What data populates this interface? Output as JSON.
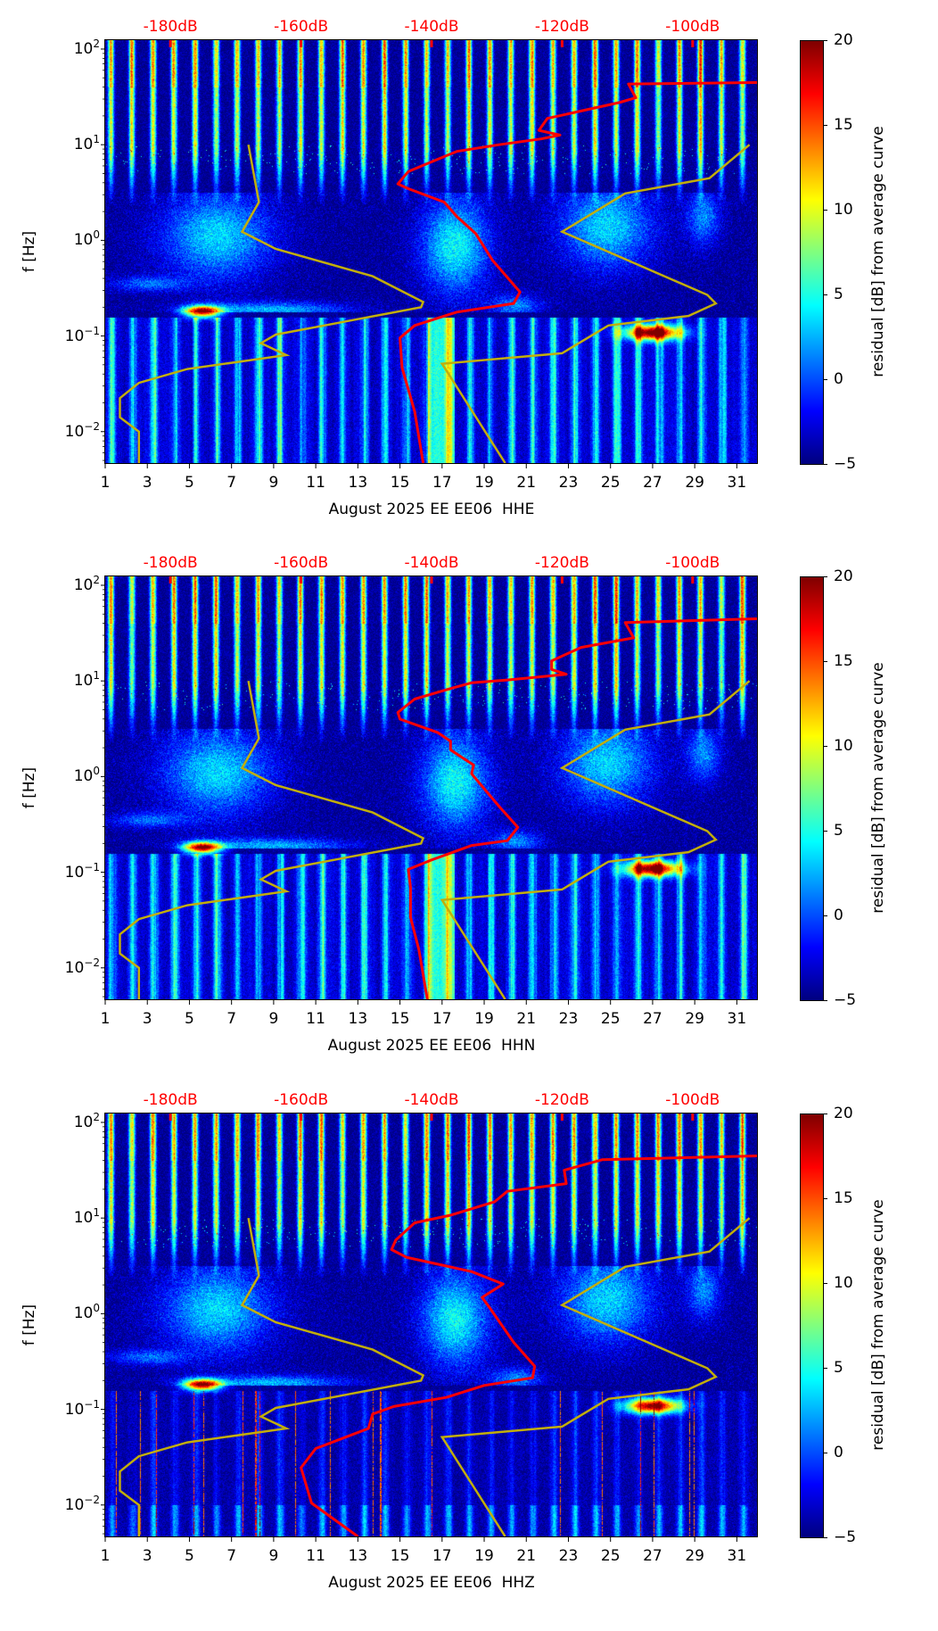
{
  "colors": {
    "red_curve": "#ff0000",
    "yellow_curve": "#c2ae0a",
    "db_labels": "#ff0000"
  },
  "chart_data": [
    {
      "type": "heatmap",
      "xlabel": "August 2025 EE EE06  HHE",
      "ylabel": "f [Hz]",
      "colorbar_label": "residual [dB] from average curve",
      "colorbar_range": [
        -5,
        20
      ],
      "colorbar_ticks": [
        "20",
        "15",
        "10",
        "5",
        "0",
        "−5"
      ],
      "xlim": [
        1,
        32
      ],
      "x_ticks": [
        "1",
        "3",
        "5",
        "7",
        "9",
        "11",
        "13",
        "15",
        "17",
        "19",
        "21",
        "23",
        "25",
        "27",
        "29",
        "31"
      ],
      "ylim_hz": [
        0.0046,
        124
      ],
      "y_scale": "log",
      "y_ticks": [
        {
          "base": "10",
          "exp": "2"
        },
        {
          "base": "10",
          "exp": "1"
        },
        {
          "base": "10",
          "exp": "0"
        },
        {
          "base": "10",
          "exp": "−1"
        },
        {
          "base": "10",
          "exp": "−2"
        }
      ],
      "top_axis_labels": [
        {
          "label": "-180dB",
          "day": 4.1
        },
        {
          "label": "-160dB",
          "day": 10.3
        },
        {
          "label": "-140dB",
          "day": 16.5
        },
        {
          "label": "-120dB",
          "day": 22.7
        },
        {
          "label": "-100dB",
          "day": 28.9
        }
      ],
      "red_curve_day_log10f": [
        [
          32,
          1.65
        ],
        [
          25.85,
          1.635
        ],
        [
          26.2,
          1.49
        ],
        [
          25.4,
          1.44
        ],
        [
          23.7,
          1.357
        ],
        [
          22.0,
          1.275
        ],
        [
          21.6,
          1.15
        ],
        [
          22.6,
          1.1
        ],
        [
          21.7,
          1.06
        ],
        [
          19.7,
          1.0
        ],
        [
          17.7,
          0.93
        ],
        [
          16.6,
          0.83
        ],
        [
          15.4,
          0.72
        ],
        [
          14.9,
          0.59
        ],
        [
          15.4,
          0.54
        ],
        [
          17.1,
          0.4
        ],
        [
          17.7,
          0.25
        ],
        [
          18.6,
          0.07
        ],
        [
          19.4,
          -0.21
        ],
        [
          20.7,
          -0.54
        ],
        [
          20.4,
          -0.66
        ],
        [
          17.7,
          -0.75
        ],
        [
          15.7,
          -0.89
        ],
        [
          15.0,
          -1.02
        ],
        [
          15.1,
          -1.33
        ],
        [
          15.7,
          -1.79
        ],
        [
          16.1,
          -2.33
        ]
      ],
      "yellow_curve_low_day_log10f": [
        [
          7.8,
          1.0
        ],
        [
          8.3,
          0.4
        ],
        [
          7.5,
          0.09
        ],
        [
          9.1,
          -0.09
        ],
        [
          13.7,
          -0.375
        ],
        [
          16.1,
          -0.645
        ],
        [
          16.0,
          -0.7
        ],
        [
          9.1,
          -0.985
        ],
        [
          8.4,
          -1.075
        ],
        [
          9.6,
          -1.2
        ],
        [
          4.9,
          -1.345
        ],
        [
          2.6,
          -1.49
        ],
        [
          1.7,
          -1.65
        ],
        [
          1.7,
          -1.85
        ],
        [
          2.6,
          -2.0
        ],
        [
          2.6,
          -2.33
        ]
      ],
      "yellow_curve_high_day_log10f": [
        [
          20.0,
          -2.33
        ],
        [
          17.0,
          -1.29
        ],
        [
          22.7,
          -1.18
        ],
        [
          24.9,
          -0.89
        ],
        [
          28.7,
          -0.79
        ],
        [
          30.0,
          -0.66
        ],
        [
          29.6,
          -0.57
        ],
        [
          22.7,
          0.09
        ],
        [
          25.7,
          0.49
        ],
        [
          29.7,
          0.65
        ],
        [
          31.6,
          1.0
        ]
      ]
    },
    {
      "type": "heatmap",
      "xlabel": "August 2025 EE EE06  HHN",
      "ylabel": "f [Hz]",
      "colorbar_label": "residual [dB] from average curve",
      "colorbar_range": [
        -5,
        20
      ],
      "colorbar_ticks": [
        "20",
        "15",
        "10",
        "5",
        "0",
        "−5"
      ],
      "xlim": [
        1,
        32
      ],
      "x_ticks": [
        "1",
        "3",
        "5",
        "7",
        "9",
        "11",
        "13",
        "15",
        "17",
        "19",
        "21",
        "23",
        "25",
        "27",
        "29",
        "31"
      ],
      "ylim_hz": [
        0.0046,
        124
      ],
      "y_scale": "log",
      "y_ticks": [
        {
          "base": "10",
          "exp": "2"
        },
        {
          "base": "10",
          "exp": "1"
        },
        {
          "base": "10",
          "exp": "0"
        },
        {
          "base": "10",
          "exp": "−1"
        },
        {
          "base": "10",
          "exp": "−2"
        }
      ],
      "top_axis_labels": [
        {
          "label": "-180dB",
          "day": 4.1
        },
        {
          "label": "-160dB",
          "day": 10.3
        },
        {
          "label": "-140dB",
          "day": 16.5
        },
        {
          "label": "-120dB",
          "day": 22.7
        },
        {
          "label": "-100dB",
          "day": 28.9
        }
      ],
      "red_curve_day_log10f": [
        [
          32,
          1.65
        ],
        [
          25.7,
          1.61
        ],
        [
          26.1,
          1.45
        ],
        [
          23.6,
          1.35
        ],
        [
          22.2,
          1.21
        ],
        [
          22.2,
          1.12
        ],
        [
          22.9,
          1.07
        ],
        [
          20.1,
          1.01
        ],
        [
          18.4,
          0.98
        ],
        [
          17.4,
          0.92
        ],
        [
          15.7,
          0.81
        ],
        [
          14.9,
          0.67
        ],
        [
          15.0,
          0.6
        ],
        [
          16.8,
          0.46
        ],
        [
          17.4,
          0.37
        ],
        [
          17.4,
          0.28
        ],
        [
          18.5,
          0.12
        ],
        [
          18.4,
          0.03
        ],
        [
          19.7,
          -0.31
        ],
        [
          20.6,
          -0.53
        ],
        [
          20.1,
          -0.67
        ],
        [
          18.4,
          -0.72
        ],
        [
          16.4,
          -0.88
        ],
        [
          15.4,
          -0.97
        ],
        [
          15.5,
          -1.16
        ],
        [
          15.5,
          -1.47
        ],
        [
          15.9,
          -1.81
        ],
        [
          16.3,
          -2.33
        ]
      ],
      "yellow_curve_low_day_log10f": [
        [
          7.8,
          1.0
        ],
        [
          8.3,
          0.4
        ],
        [
          7.5,
          0.09
        ],
        [
          9.1,
          -0.09
        ],
        [
          13.7,
          -0.375
        ],
        [
          16.1,
          -0.645
        ],
        [
          16.0,
          -0.7
        ],
        [
          9.1,
          -0.985
        ],
        [
          8.4,
          -1.075
        ],
        [
          9.6,
          -1.2
        ],
        [
          4.9,
          -1.345
        ],
        [
          2.6,
          -1.49
        ],
        [
          1.7,
          -1.65
        ],
        [
          1.7,
          -1.85
        ],
        [
          2.6,
          -2.0
        ],
        [
          2.6,
          -2.33
        ]
      ],
      "yellow_curve_high_day_log10f": [
        [
          20.0,
          -2.33
        ],
        [
          17.0,
          -1.29
        ],
        [
          22.7,
          -1.18
        ],
        [
          24.9,
          -0.89
        ],
        [
          28.7,
          -0.79
        ],
        [
          30.0,
          -0.66
        ],
        [
          29.6,
          -0.57
        ],
        [
          22.7,
          0.09
        ],
        [
          25.7,
          0.49
        ],
        [
          29.7,
          0.65
        ],
        [
          31.6,
          1.0
        ]
      ]
    },
    {
      "type": "heatmap",
      "xlabel": "August 2025 EE EE06  HHZ",
      "ylabel": "f [Hz]",
      "colorbar_label": "residual [dB] from average curve",
      "colorbar_range": [
        -5,
        20
      ],
      "colorbar_ticks": [
        "20",
        "15",
        "10",
        "5",
        "0",
        "−5"
      ],
      "xlim": [
        1,
        32
      ],
      "x_ticks": [
        "1",
        "3",
        "5",
        "7",
        "9",
        "11",
        "13",
        "15",
        "17",
        "19",
        "21",
        "23",
        "25",
        "27",
        "29",
        "31"
      ],
      "ylim_hz": [
        0.0046,
        124
      ],
      "y_scale": "log",
      "y_ticks": [
        {
          "base": "10",
          "exp": "2"
        },
        {
          "base": "10",
          "exp": "1"
        },
        {
          "base": "10",
          "exp": "0"
        },
        {
          "base": "10",
          "exp": "−1"
        },
        {
          "base": "10",
          "exp": "−2"
        }
      ],
      "top_axis_labels": [
        {
          "label": "-180dB",
          "day": 4.1
        },
        {
          "label": "-160dB",
          "day": 10.3
        },
        {
          "label": "-140dB",
          "day": 16.5
        },
        {
          "label": "-120dB",
          "day": 22.7
        },
        {
          "label": "-100dB",
          "day": 28.9
        }
      ],
      "red_curve_day_log10f": [
        [
          32,
          1.65
        ],
        [
          24.6,
          1.61
        ],
        [
          22.8,
          1.5
        ],
        [
          22.9,
          1.36
        ],
        [
          20.1,
          1.28
        ],
        [
          19.5,
          1.17
        ],
        [
          17.4,
          1.03
        ],
        [
          15.7,
          0.95
        ],
        [
          14.8,
          0.77
        ],
        [
          14.6,
          0.67
        ],
        [
          15.3,
          0.59
        ],
        [
          18.4,
          0.44
        ],
        [
          19.9,
          0.31
        ],
        [
          18.9,
          0.17
        ],
        [
          19.3,
          0.05
        ],
        [
          20.4,
          -0.3
        ],
        [
          21.4,
          -0.55
        ],
        [
          21.3,
          -0.67
        ],
        [
          19.0,
          -0.75
        ],
        [
          17.2,
          -0.875
        ],
        [
          14.7,
          -0.97
        ],
        [
          13.7,
          -1.05
        ],
        [
          13.5,
          -1.2
        ],
        [
          11.0,
          -1.41
        ],
        [
          10.3,
          -1.61
        ],
        [
          10.8,
          -1.98
        ],
        [
          13.0,
          -2.33
        ]
      ],
      "yellow_curve_low_day_log10f": [
        [
          7.8,
          1.0
        ],
        [
          8.3,
          0.4
        ],
        [
          7.5,
          0.09
        ],
        [
          9.1,
          -0.09
        ],
        [
          13.7,
          -0.375
        ],
        [
          16.1,
          -0.645
        ],
        [
          16.0,
          -0.7
        ],
        [
          9.1,
          -0.985
        ],
        [
          8.4,
          -1.075
        ],
        [
          9.6,
          -1.2
        ],
        [
          4.9,
          -1.345
        ],
        [
          2.6,
          -1.49
        ],
        [
          1.7,
          -1.65
        ],
        [
          1.7,
          -1.85
        ],
        [
          2.6,
          -2.0
        ],
        [
          2.6,
          -2.33
        ]
      ],
      "yellow_curve_high_day_log10f": [
        [
          20.0,
          -2.33
        ],
        [
          17.0,
          -1.29
        ],
        [
          22.7,
          -1.18
        ],
        [
          24.9,
          -0.89
        ],
        [
          28.7,
          -0.79
        ],
        [
          30.0,
          -0.66
        ],
        [
          29.6,
          -0.57
        ],
        [
          22.7,
          0.09
        ],
        [
          25.7,
          0.49
        ],
        [
          29.7,
          0.65
        ],
        [
          31.6,
          1.0
        ]
      ]
    }
  ]
}
